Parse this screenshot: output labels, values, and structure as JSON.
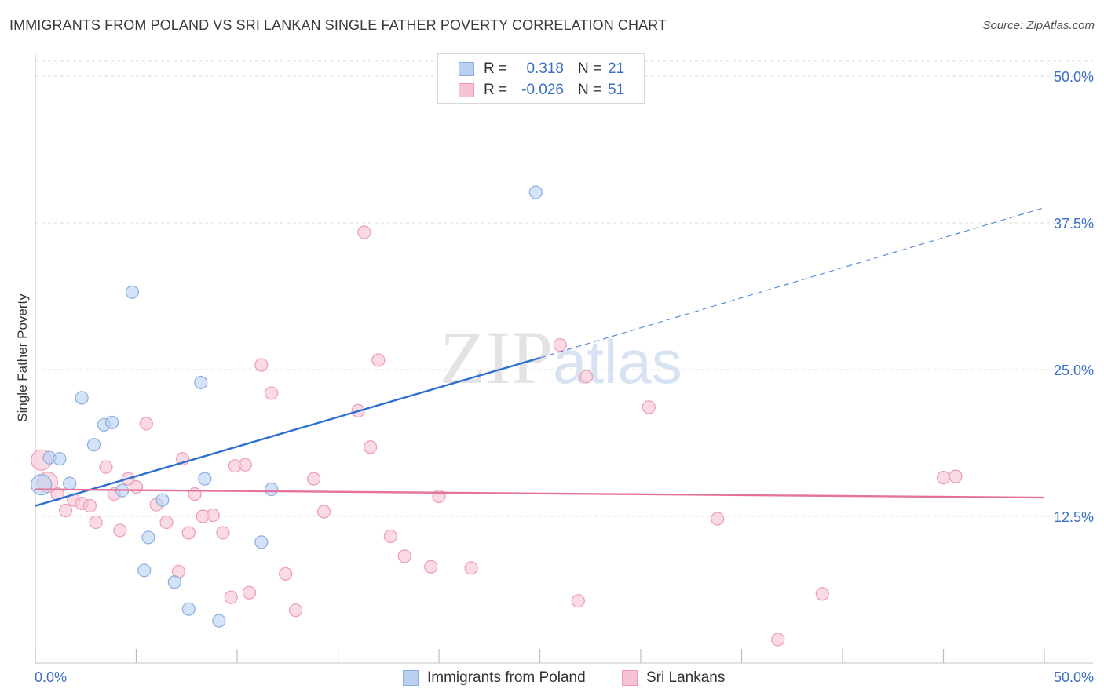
{
  "title": "IMMIGRANTS FROM POLAND VS SRI LANKAN SINGLE FATHER POVERTY CORRELATION CHART",
  "source": "Source: ZipAtlas.com",
  "watermark": {
    "zip": "ZIP",
    "atlas": "atlas"
  },
  "legend_top": {
    "rows": [
      {
        "r_label": "R =",
        "r_value": "0.318",
        "n_label": "N =",
        "n_value": "21"
      },
      {
        "r_label": "R =",
        "r_value": "-0.026",
        "n_label": "N =",
        "n_value": "51"
      }
    ]
  },
  "legend_bottom": [
    "Immigrants from Poland",
    "Sri Lankans"
  ],
  "colors": {
    "poland_fill": "#b8d0f2",
    "poland_stroke": "#8aaee0",
    "poland_line": "#2d6fd1",
    "srilanka_fill": "#f7c3d3",
    "srilanka_stroke": "#ee9ab5",
    "srilanka_line": "#e4749b",
    "tick_label": "#3b6fc6",
    "grid": "#dddddd"
  },
  "chart_data": {
    "type": "scatter",
    "title": "IMMIGRANTS FROM POLAND VS SRI LANKAN SINGLE FATHER POVERTY CORRELATION CHART",
    "xlabel": "",
    "ylabel": "Single Father Poverty",
    "xlim": [
      0,
      50
    ],
    "ylim": [
      0,
      50
    ],
    "x_tick_labels": [
      "0.0%",
      "50.0%"
    ],
    "y_ticks": [
      12.5,
      25.0,
      37.5,
      50.0
    ],
    "y_tick_labels": [
      "12.5%",
      "25.0%",
      "37.5%",
      "50.0%"
    ],
    "grid": "horizontal dashed",
    "legend_position": "bottom-center",
    "series": [
      {
        "name": "Immigrants from Poland",
        "r": 0.318,
        "n": 21,
        "points": [
          [
            0.3,
            15.2
          ],
          [
            0.7,
            17.5
          ],
          [
            1.2,
            17.4
          ],
          [
            1.7,
            15.3
          ],
          [
            2.3,
            22.6
          ],
          [
            2.9,
            18.6
          ],
          [
            3.4,
            20.3
          ],
          [
            3.8,
            20.5
          ],
          [
            4.3,
            14.7
          ],
          [
            4.8,
            31.6
          ],
          [
            5.6,
            10.7
          ],
          [
            6.3,
            13.9
          ],
          [
            5.4,
            7.9
          ],
          [
            6.9,
            6.9
          ],
          [
            7.6,
            4.6
          ],
          [
            8.2,
            23.9
          ],
          [
            8.4,
            15.7
          ],
          [
            9.1,
            3.6
          ],
          [
            11.2,
            10.3
          ],
          [
            11.7,
            14.8
          ],
          [
            24.8,
            40.1
          ]
        ],
        "trend": {
          "x": [
            0,
            25
          ],
          "y": [
            13.4,
            26.0
          ],
          "dashed_to": [
            50,
            38.8
          ]
        }
      },
      {
        "name": "Sri Lankans",
        "r": -0.026,
        "n": 51,
        "points": [
          [
            0.3,
            17.3
          ],
          [
            0.6,
            15.4
          ],
          [
            1.1,
            14.4
          ],
          [
            1.5,
            13.0
          ],
          [
            1.9,
            13.9
          ],
          [
            2.3,
            13.6
          ],
          [
            2.7,
            13.4
          ],
          [
            3.0,
            12.0
          ],
          [
            3.5,
            16.7
          ],
          [
            3.9,
            14.4
          ],
          [
            4.2,
            11.3
          ],
          [
            4.6,
            15.7
          ],
          [
            5.0,
            15.0
          ],
          [
            5.5,
            20.4
          ],
          [
            6.0,
            13.5
          ],
          [
            6.5,
            12.0
          ],
          [
            7.1,
            7.8
          ],
          [
            7.3,
            17.4
          ],
          [
            7.6,
            11.1
          ],
          [
            7.9,
            14.4
          ],
          [
            8.3,
            12.5
          ],
          [
            8.8,
            12.6
          ],
          [
            9.3,
            11.1
          ],
          [
            9.7,
            5.6
          ],
          [
            9.9,
            16.8
          ],
          [
            10.4,
            16.9
          ],
          [
            10.6,
            6.0
          ],
          [
            11.2,
            25.4
          ],
          [
            11.7,
            23.0
          ],
          [
            12.4,
            7.6
          ],
          [
            12.9,
            4.5
          ],
          [
            13.8,
            15.7
          ],
          [
            14.3,
            12.9
          ],
          [
            16.3,
            36.7
          ],
          [
            16.0,
            21.5
          ],
          [
            16.6,
            18.4
          ],
          [
            17.0,
            25.8
          ],
          [
            17.6,
            10.8
          ],
          [
            18.3,
            9.1
          ],
          [
            19.6,
            8.2
          ],
          [
            20.0,
            14.2
          ],
          [
            21.6,
            8.1
          ],
          [
            26.0,
            27.1
          ],
          [
            26.9,
            5.3
          ],
          [
            27.3,
            24.4
          ],
          [
            30.4,
            21.8
          ],
          [
            33.8,
            12.3
          ],
          [
            36.8,
            2.0
          ],
          [
            39.0,
            5.9
          ],
          [
            45.0,
            15.8
          ],
          [
            45.6,
            15.9
          ]
        ],
        "trend": {
          "x": [
            0,
            50
          ],
          "y": [
            14.8,
            14.1
          ]
        }
      }
    ]
  }
}
